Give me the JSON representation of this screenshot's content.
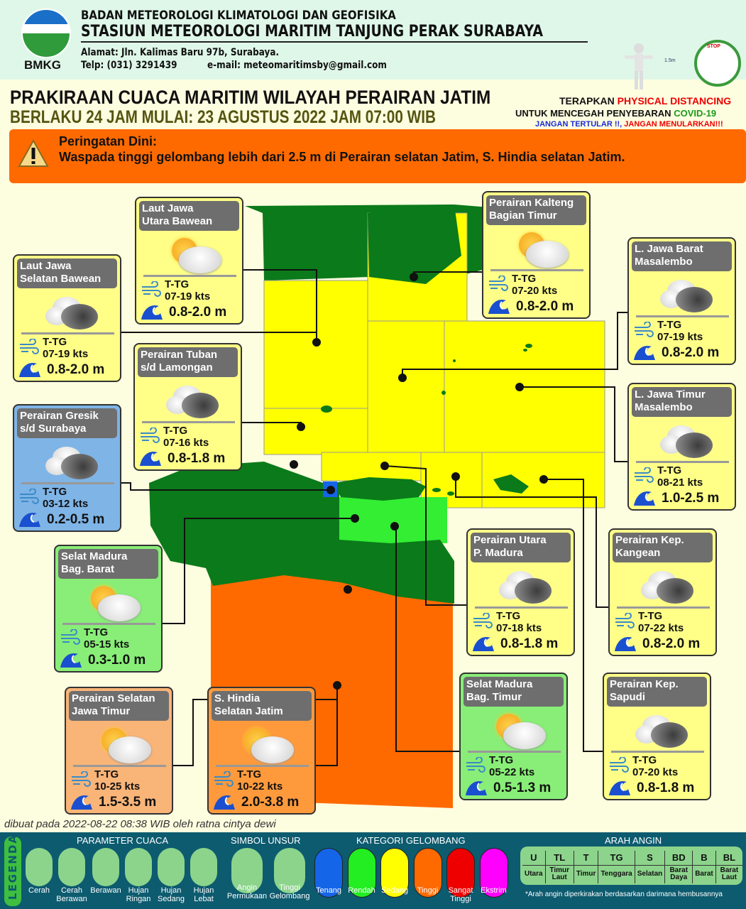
{
  "header": {
    "logo_text": "BMKG",
    "org_line1": "BADAN METEOROLOGI KLIMATOLOGI DAN GEOFISIKA",
    "org_line2": "STASIUN METEOROLOGI MARITIM TANJUNG PERAK SURABAYA",
    "address": "Alamat: Jln. Kalimas Baru 97b, Surabaya.",
    "phone": "Telp: (031) 3291439",
    "email": "e-mail: meteomaritimsby@gmail.com",
    "distance_label": "1.5m",
    "stop_label": "STOP"
  },
  "title": {
    "main": "PRAKIRAAN CUACA MARITIM WILAYAH PERAIRAN JATIM",
    "validity": "BERLAKU 24 JAM MULAI: 23 AGUSTUS 2022 JAM 07:00 WIB"
  },
  "covid": {
    "l1a": "TERAPKAN ",
    "l1b": "PHYSICAL DISTANCING",
    "l2a": "UNTUK MENCEGAH PENYEBARAN ",
    "l2b": "COVID-19",
    "l3a": "JANGAN TERTULAR !!, ",
    "l3b": "JANGAN MENULARKAN!!!"
  },
  "warning": {
    "heading": "Peringatan Dini:",
    "text": "Waspada tinggi gelombang lebih dari 2.5 m di Perairan selatan Jatim, S. Hindia selatan Jatim."
  },
  "colors": {
    "tenang": "#1565e8",
    "rendah": "#22ee22",
    "sedang": "#ffff00",
    "tinggi": "#ff6a00",
    "sangat_tinggi": "#ee0000",
    "ekstrim": "#ff00ff",
    "land": "#0b7a1a",
    "warning": "#ff6a00"
  },
  "areas": [
    {
      "name1": "Laut Jawa",
      "name2": "Selatan Bawean",
      "weather": "berawan",
      "wind_dir": "T-TG",
      "wind_speed": "07-19 kts",
      "wave": "0.8-2.0 m",
      "category": "sedang"
    },
    {
      "name1": "Laut Jawa",
      "name2": "Utara Bawean",
      "weather": "cerah-berawan",
      "wind_dir": "T-TG",
      "wind_speed": "07-19 kts",
      "wave": "0.8-2.0 m",
      "category": "sedang"
    },
    {
      "name1": "Perairan Tuban",
      "name2": "s/d Lamongan",
      "weather": "berawan",
      "wind_dir": "T-TG",
      "wind_speed": "07-16 kts",
      "wave": "0.8-1.8 m",
      "category": "sedang"
    },
    {
      "name1": "Perairan Gresik",
      "name2": "s/d Surabaya",
      "weather": "berawan",
      "wind_dir": "T-TG",
      "wind_speed": "03-12 kts",
      "wave": "0.2-0.5 m",
      "category": "tenang"
    },
    {
      "name1": "Perairan Kalteng",
      "name2": "Bagian Timur",
      "weather": "cerah-berawan",
      "wind_dir": "T-TG",
      "wind_speed": "07-20 kts",
      "wave": "0.8-2.0 m",
      "category": "sedang"
    },
    {
      "name1": "L. Jawa Barat",
      "name2": "Masalembo",
      "weather": "berawan",
      "wind_dir": "T-TG",
      "wind_speed": "07-19 kts",
      "wave": "0.8-2.0 m",
      "category": "sedang"
    },
    {
      "name1": "L. Jawa Timur",
      "name2": "Masalembo",
      "weather": "berawan",
      "wind_dir": "T-TG",
      "wind_speed": "08-21 kts",
      "wave": "1.0-2.5 m",
      "category": "sedang"
    },
    {
      "name1": "Selat Madura",
      "name2": "Bag. Barat",
      "weather": "cerah-berawan",
      "wind_dir": "T-TG",
      "wind_speed": "05-15 kts",
      "wave": "0.3-1.0 m",
      "category": "rendah"
    },
    {
      "name1": "Perairan Utara",
      "name2": "P. Madura",
      "weather": "berawan",
      "wind_dir": "T-TG",
      "wind_speed": "07-18 kts",
      "wave": "0.8-1.8 m",
      "category": "sedang"
    },
    {
      "name1": "Perairan Kep.",
      "name2": "Kangean",
      "weather": "berawan",
      "wind_dir": "T-TG",
      "wind_speed": "07-22 kts",
      "wave": "0.8-2.0 m",
      "category": "sedang"
    },
    {
      "name1": "Perairan Selatan",
      "name2": "Jawa Timur",
      "weather": "cerah-berawan",
      "wind_dir": "T-TG",
      "wind_speed": "10-25 kts",
      "wave": "1.5-3.5 m",
      "category": "tinggi"
    },
    {
      "name1": "S. Hindia",
      "name2": "Selatan Jatim",
      "weather": "cerah-berawan",
      "wind_dir": "T-TG",
      "wind_speed": "10-22 kts",
      "wave": "2.0-3.8 m",
      "category": "tinggi"
    },
    {
      "name1": "Selat Madura",
      "name2": "Bag. Timur",
      "weather": "cerah-berawan",
      "wind_dir": "T-TG",
      "wind_speed": "05-22 kts",
      "wave": "0.5-1.3 m",
      "category": "rendah"
    },
    {
      "name1": "Perairan Kep.",
      "name2": "Sapudi",
      "weather": "berawan",
      "wind_dir": "T-TG",
      "wind_speed": "07-20 kts",
      "wave": "0.8-1.8 m",
      "category": "sedang"
    }
  ],
  "credit": "dibuat pada 2022-08-22 08:38 WIB oleh ratna cintya dewi",
  "legend": {
    "title": "LEGENDA",
    "param_title": "PARAMETER CUACA",
    "params": [
      "Cerah",
      "Cerah Berawan",
      "Berawan",
      "Hujan Ringan",
      "Hujan Sedang",
      "Hujan Lebat"
    ],
    "simbol_title": "SIMBOL UNSUR",
    "simbol": [
      "Angin Permukaan",
      "Tinggi Gelombang"
    ],
    "kategori_title": "KATEGORI GELOMBANG",
    "kategori": [
      "Tenang",
      "Rendah",
      "Sedang",
      "Tinggi",
      "Sangat Tinggi",
      "Ekstrim"
    ],
    "arah_title": "ARAH ANGIN",
    "arah_codes": [
      "U",
      "TL",
      "T",
      "TG",
      "S",
      "BD",
      "B",
      "BL"
    ],
    "arah_names": [
      "Utara",
      "Timur Laut",
      "Timur",
      "Tenggara",
      "Selatan",
      "Barat Daya",
      "Barat",
      "Barat Laut"
    ],
    "arah_note": "*Arah angin diperkirakan berdasarkan darimana hembusannya"
  }
}
